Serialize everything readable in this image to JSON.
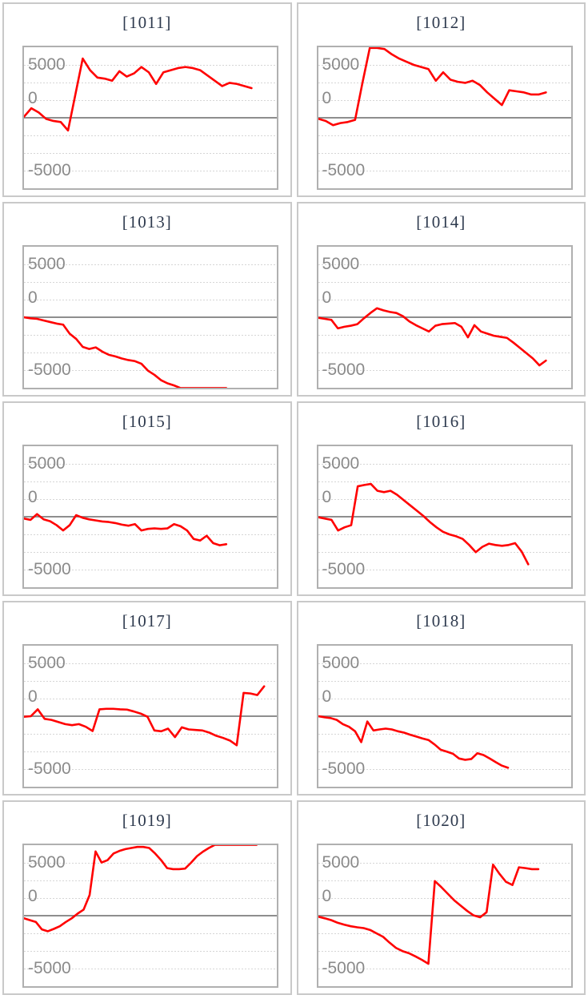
{
  "axis": {
    "ylim": [
      -6667,
      6667
    ],
    "gridline_step": 1667,
    "grid_on": true,
    "tick_labels": [
      "5000",
      "0",
      "-5000"
    ],
    "tick_values": [
      5000,
      0,
      -5000
    ],
    "xlabel": "",
    "ylabel": ""
  },
  "style": {
    "line_color": "#ff0000",
    "zero_line_color": "#8e8e8e",
    "gridline_color": "#d6d6d6",
    "plot_border_color": "#b0b0b0",
    "card_border_color": "#c9c9c9",
    "title_text_color": "#2e3a4e",
    "axis_text_color": "#8a8a8a",
    "background": "#ffffff"
  },
  "chart_data": [
    {
      "id": "1011",
      "title": "[1011]",
      "type": "line",
      "end_fraction": 0.9,
      "values": [
        100,
        900,
        500,
        -100,
        -300,
        -400,
        -1200,
        2200,
        5600,
        4500,
        3800,
        3700,
        3500,
        4400,
        3900,
        4200,
        4800,
        4300,
        3200,
        4300,
        4500,
        4700,
        4800,
        4700,
        4500,
        4000,
        3500,
        3000,
        3300,
        3200,
        3000,
        2800
      ]
    },
    {
      "id": "1012",
      "title": "[1012]",
      "type": "line",
      "end_fraction": 0.9,
      "values": [
        -100,
        -300,
        -700,
        -500,
        -400,
        -200,
        3300,
        6600,
        6600,
        6500,
        6000,
        5600,
        5300,
        5000,
        4800,
        4600,
        3500,
        4300,
        3600,
        3400,
        3300,
        3500,
        3100,
        2400,
        1800,
        1200,
        2600,
        2500,
        2400,
        2200,
        2200,
        2400
      ]
    },
    {
      "id": "1013",
      "title": "[1013]",
      "type": "line",
      "end_fraction": 0.8,
      "values": [
        0,
        -100,
        -150,
        -300,
        -450,
        -600,
        -700,
        -1550,
        -2050,
        -2800,
        -3000,
        -2850,
        -3250,
        -3550,
        -3700,
        -3900,
        -4050,
        -4150,
        -4400,
        -5050,
        -5450,
        -5950,
        -6250,
        -6450,
        -6700,
        -6700,
        -6700,
        -6700,
        -6700,
        -6700,
        -6700,
        -6700
      ]
    },
    {
      "id": "1014",
      "title": "[1014]",
      "type": "line",
      "end_fraction": 0.9,
      "values": [
        -50,
        -150,
        -250,
        -1050,
        -900,
        -800,
        -650,
        -100,
        400,
        850,
        650,
        500,
        400,
        100,
        -400,
        -750,
        -1050,
        -1350,
        -800,
        -650,
        -600,
        -550,
        -900,
        -1900,
        -750,
        -1350,
        -1550,
        -1750,
        -1850,
        -1950,
        -2400,
        -2900,
        -3400,
        -3900,
        -4550,
        -4100
      ]
    },
    {
      "id": "1015",
      "title": "[1015]",
      "type": "line",
      "end_fraction": 0.8,
      "values": [
        -175,
        -300,
        250,
        -250,
        -425,
        -800,
        -1300,
        -800,
        150,
        -100,
        -250,
        -350,
        -450,
        -500,
        -600,
        -750,
        -850,
        -700,
        -1300,
        -1150,
        -1100,
        -1150,
        -1100,
        -700,
        -900,
        -1300,
        -2100,
        -2250,
        -1800,
        -2500,
        -2700,
        -2600
      ]
    },
    {
      "id": "1016",
      "title": "[1016]",
      "type": "line",
      "end_fraction": 0.83,
      "values": [
        -50,
        -175,
        -300,
        -1300,
        -1000,
        -800,
        2875,
        3000,
        3100,
        2450,
        2325,
        2450,
        2075,
        1575,
        1075,
        575,
        75,
        -500,
        -1000,
        -1425,
        -1675,
        -1850,
        -2100,
        -2675,
        -3350,
        -2850,
        -2550,
        -2675,
        -2750,
        -2675,
        -2500,
        -3300,
        -4500
      ]
    },
    {
      "id": "1017",
      "title": "[1017]",
      "type": "line",
      "end_fraction": 0.95,
      "values": [
        -50,
        0,
        650,
        -250,
        -350,
        -550,
        -750,
        -850,
        -750,
        -1000,
        -1400,
        650,
        700,
        700,
        650,
        625,
        450,
        250,
        -50,
        -1350,
        -1425,
        -1175,
        -1975,
        -1050,
        -1250,
        -1300,
        -1350,
        -1550,
        -1850,
        -2050,
        -2300,
        -2750,
        2200,
        2150,
        2000,
        2825
      ]
    },
    {
      "id": "1018",
      "title": "[1018]",
      "type": "line",
      "end_fraction": 0.75,
      "values": [
        0,
        -100,
        -175,
        -350,
        -750,
        -1000,
        -1425,
        -2450,
        -500,
        -1350,
        -1250,
        -1175,
        -1250,
        -1425,
        -1550,
        -1750,
        -1925,
        -2100,
        -2250,
        -2675,
        -3175,
        -3350,
        -3550,
        -4000,
        -4125,
        -4050,
        -3500,
        -3675,
        -4000,
        -4350,
        -4675,
        -4875
      ]
    },
    {
      "id": "1019",
      "title": "[1019]",
      "type": "line",
      "end_fraction": 0.92,
      "values": [
        -250,
        -425,
        -600,
        -1300,
        -1475,
        -1250,
        -1000,
        -600,
        -250,
        200,
        575,
        1950,
        6075,
        5025,
        5250,
        5875,
        6125,
        6300,
        6400,
        6500,
        6500,
        6400,
        5875,
        5250,
        4500,
        4400,
        4400,
        4450,
        5000,
        5625,
        6050,
        6400,
        6700,
        6700,
        6700,
        6700,
        6700,
        6700,
        6700,
        6700
      ]
    },
    {
      "id": "1020",
      "title": "[1020]",
      "type": "line",
      "end_fraction": 0.87,
      "values": [
        -100,
        -250,
        -425,
        -675,
        -850,
        -1000,
        -1100,
        -1175,
        -1350,
        -1675,
        -2000,
        -2550,
        -3050,
        -3350,
        -3550,
        -3850,
        -4175,
        -4550,
        3275,
        2700,
        2075,
        1450,
        950,
        450,
        25,
        -150,
        325,
        4825,
        3950,
        3200,
        2900,
        4575,
        4500,
        4400,
        4400
      ]
    }
  ]
}
